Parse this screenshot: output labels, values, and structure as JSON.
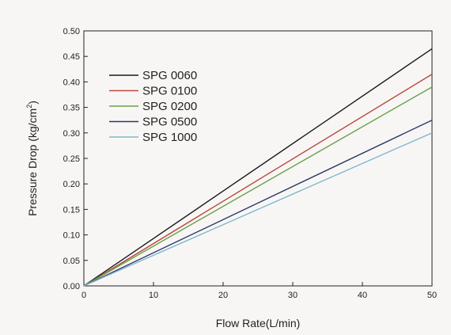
{
  "chart_data": {
    "type": "line",
    "title": "",
    "xlabel": "Flow Rate(L/min)",
    "ylabel_main": "Pressure Drop (kg/cm",
    "ylabel_sup": "2",
    "ylabel_end": ")",
    "xlim": [
      0,
      50
    ],
    "ylim": [
      0,
      0.5
    ],
    "x_ticks": [
      0,
      10,
      20,
      30,
      40,
      50
    ],
    "y_ticks": [
      0.0,
      0.05,
      0.1,
      0.15,
      0.2,
      0.25,
      0.3,
      0.35,
      0.4,
      0.45,
      0.5
    ],
    "grid": false,
    "legend_position": "top-left",
    "series": [
      {
        "name": "SPG 0060",
        "color": "#1a1a1a",
        "x": [
          0,
          50
        ],
        "y": [
          0,
          0.465
        ]
      },
      {
        "name": "SPG 0100",
        "color": "#b84a3e",
        "x": [
          0,
          50
        ],
        "y": [
          0,
          0.415
        ]
      },
      {
        "name": "SPG 0200",
        "color": "#6aa04a",
        "x": [
          0,
          50
        ],
        "y": [
          0,
          0.39
        ]
      },
      {
        "name": "SPG 0500",
        "color": "#2b3a66",
        "x": [
          0,
          50
        ],
        "y": [
          0,
          0.325
        ]
      },
      {
        "name": "SPG 1000",
        "color": "#7fb8cf",
        "x": [
          0,
          50
        ],
        "y": [
          0,
          0.3
        ]
      }
    ]
  }
}
